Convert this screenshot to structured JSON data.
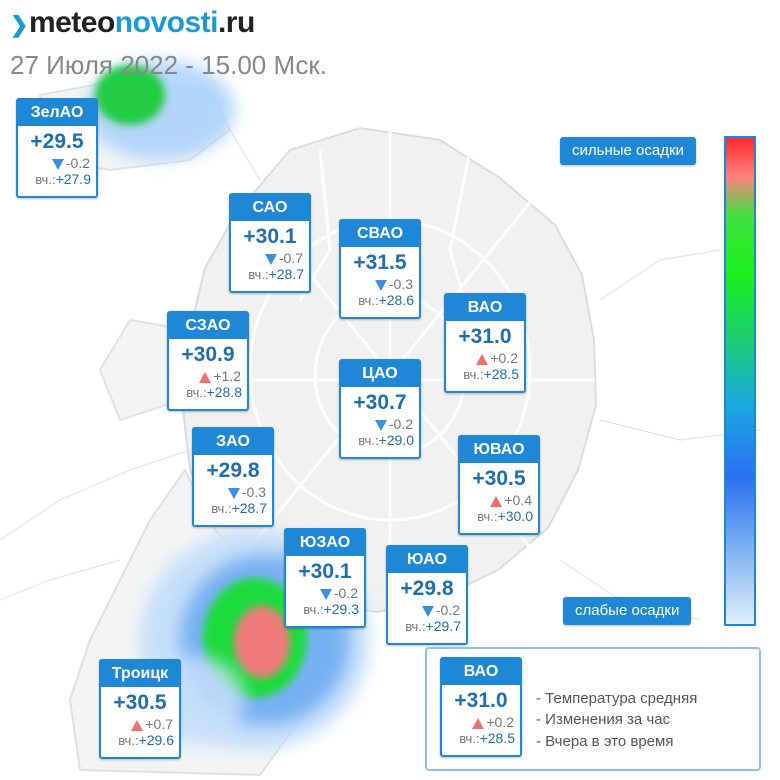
{
  "header": {
    "logo_meteo": "meteo",
    "logo_novosti": "novosti",
    "logo_ru": ".ru",
    "date": "27 Июля 2022 - 15.00 Мск."
  },
  "yesterday_prefix": "вч.:",
  "districts": [
    {
      "name": "ЗелАО",
      "temp": "+29.5",
      "change": "-0.2",
      "dir": "down",
      "yesterday": "+27.9"
    },
    {
      "name": "САО",
      "temp": "+30.1",
      "change": "-0.7",
      "dir": "down",
      "yesterday": "+28.7"
    },
    {
      "name": "СВАО",
      "temp": "+31.5",
      "change": "-0.3",
      "dir": "down",
      "yesterday": "+28.6"
    },
    {
      "name": "ВАО",
      "temp": "+31.0",
      "change": "+0.2",
      "dir": "up",
      "yesterday": "+28.5"
    },
    {
      "name": "СЗАО",
      "temp": "+30.9",
      "change": "+1.2",
      "dir": "up",
      "yesterday": "+28.8"
    },
    {
      "name": "ЦАО",
      "temp": "+30.7",
      "change": "-0.2",
      "dir": "down",
      "yesterday": "+29.0"
    },
    {
      "name": "ЗАО",
      "temp": "+29.8",
      "change": "-0.3",
      "dir": "down",
      "yesterday": "+28.7"
    },
    {
      "name": "ЮВАО",
      "temp": "+30.5",
      "change": "+0.4",
      "dir": "up",
      "yesterday": "+30.0"
    },
    {
      "name": "ЮЗАО",
      "temp": "+30.1",
      "change": "-0.2",
      "dir": "down",
      "yesterday": "+29.3"
    },
    {
      "name": "ЮАО",
      "temp": "+29.8",
      "change": "-0.2",
      "dir": "down",
      "yesterday": "+29.7"
    },
    {
      "name": "Троицк",
      "temp": "+30.5",
      "change": "+0.7",
      "dir": "up",
      "yesterday": "+29.6"
    }
  ],
  "scale": {
    "top_label": "сильные осадки",
    "bottom_label": "слабые осадки"
  },
  "legend": {
    "sample": {
      "name": "ВАО",
      "temp": "+31.0",
      "change": "+0.2",
      "dir": "up",
      "yesterday": "+28.5"
    },
    "line1": "- Температура средняя",
    "line2": "- Изменения за час",
    "line3": "- Вчера в это время"
  },
  "colors": {
    "accent": "#1e88d6",
    "temp_text": "#1e6fae",
    "down_arrow": "#3a8fe0",
    "up_arrow": "#f07070",
    "precip_heavy": "#ff2a2a",
    "precip_medium": "#1cf01c",
    "precip_light": "#7ab0f0"
  }
}
